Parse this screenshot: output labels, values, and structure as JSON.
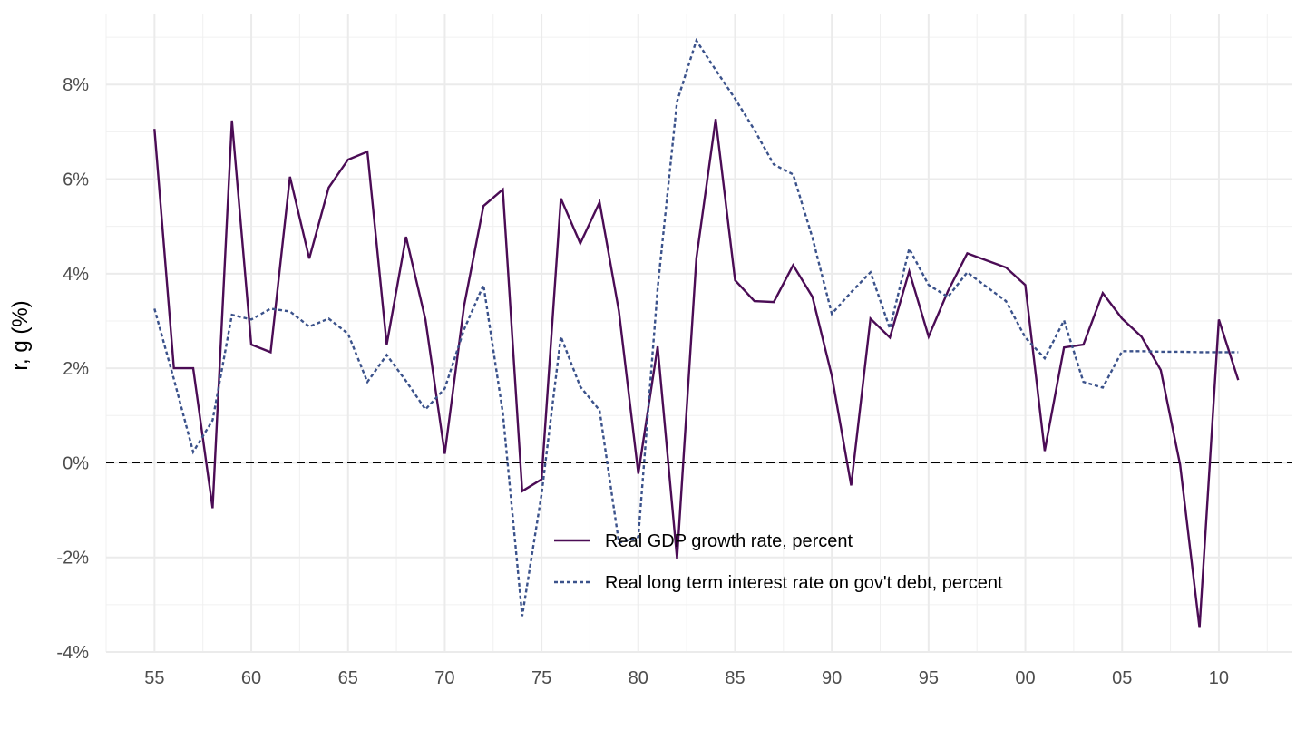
{
  "chart_data": {
    "type": "line",
    "ylabel": "r, g (%)",
    "x": [
      1955,
      1956,
      1957,
      1958,
      1959,
      1960,
      1961,
      1962,
      1963,
      1964,
      1965,
      1966,
      1967,
      1968,
      1969,
      1970,
      1971,
      1972,
      1973,
      1974,
      1975,
      1976,
      1977,
      1978,
      1979,
      1980,
      1981,
      1982,
      1983,
      1984,
      1985,
      1986,
      1987,
      1988,
      1989,
      1990,
      1991,
      1992,
      1993,
      1994,
      1995,
      1996,
      1997,
      1998,
      1999,
      2000,
      2001,
      2002,
      2003,
      2004,
      2005,
      2006,
      2007,
      2008,
      2009,
      2010,
      2011
    ],
    "series": [
      {
        "name": "Real GDP growth rate, percent",
        "color": "#4b0c55",
        "dash": "solid",
        "values": [
          7.06,
          2.0,
          2.0,
          -0.96,
          7.24,
          2.5,
          2.34,
          6.05,
          4.32,
          5.82,
          6.41,
          6.58,
          2.5,
          4.78,
          3.03,
          0.19,
          3.32,
          5.43,
          5.78,
          -0.6,
          -0.35,
          5.59,
          4.64,
          5.51,
          3.21,
          -0.23,
          2.46,
          -2.03,
          4.32,
          7.27,
          3.86,
          3.42,
          3.4,
          4.18,
          3.51,
          1.84,
          -0.48,
          3.05,
          2.65,
          4.05,
          2.67,
          3.63,
          4.43,
          4.28,
          4.13,
          3.76,
          0.25,
          2.44,
          2.5,
          3.59,
          3.05,
          2.67,
          1.96,
          -0.04,
          -3.49,
          3.03,
          1.75
        ]
      },
      {
        "name": "Real long term interest rate on gov't debt, percent",
        "color": "#3b528b",
        "dash": "dotted",
        "values": [
          3.26,
          1.77,
          0.23,
          0.9,
          3.13,
          3.03,
          3.26,
          3.2,
          2.88,
          3.05,
          2.73,
          1.71,
          2.28,
          1.73,
          1.13,
          1.57,
          2.82,
          3.76,
          1.06,
          -3.24,
          -0.67,
          2.67,
          1.61,
          1.11,
          -1.69,
          -1.57,
          3.69,
          7.64,
          8.93,
          8.31,
          7.7,
          7.04,
          6.31,
          6.1,
          4.76,
          3.15,
          3.61,
          4.03,
          2.84,
          4.53,
          3.76,
          3.51,
          4.03,
          3.72,
          3.42,
          2.65,
          2.21,
          3.01,
          1.71,
          1.59,
          2.36,
          2.36,
          2.35,
          2.35,
          2.34,
          2.34,
          2.34
        ]
      }
    ],
    "xlim": [
      1952.5,
      2013.8
    ],
    "xticks": [
      {
        "value": 1955,
        "label": "55"
      },
      {
        "value": 1960,
        "label": "60"
      },
      {
        "value": 1965,
        "label": "65"
      },
      {
        "value": 1970,
        "label": "70"
      },
      {
        "value": 1975,
        "label": "75"
      },
      {
        "value": 1980,
        "label": "80"
      },
      {
        "value": 1985,
        "label": "85"
      },
      {
        "value": 1990,
        "label": "90"
      },
      {
        "value": 1995,
        "label": "95"
      },
      {
        "value": 2000,
        "label": "00"
      },
      {
        "value": 2005,
        "label": "05"
      },
      {
        "value": 2010,
        "label": "10"
      }
    ],
    "ylim": [
      -4.0,
      9.5
    ],
    "yticks": [
      {
        "value": -4,
        "label": "-4%"
      },
      {
        "value": -2,
        "label": "-2%"
      },
      {
        "value": 0,
        "label": "0%"
      },
      {
        "value": 2,
        "label": "2%"
      },
      {
        "value": 4,
        "label": "4%"
      },
      {
        "value": 6,
        "label": "6%"
      },
      {
        "value": 8,
        "label": "8%"
      }
    ],
    "hline": 0,
    "grid": true,
    "legend": "bottom-center"
  }
}
